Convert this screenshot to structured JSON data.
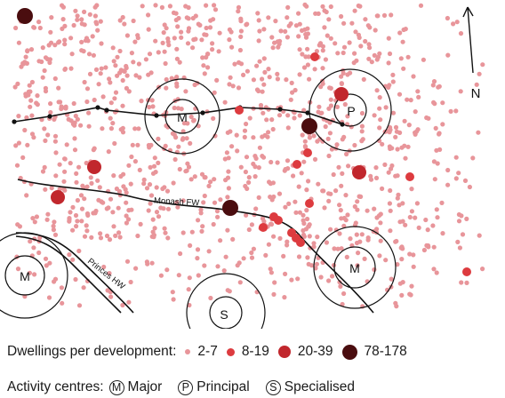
{
  "map": {
    "north_label": "N",
    "road_labels": {
      "monash": "Monash FW",
      "princes": "Princes HW"
    },
    "centres": [
      {
        "id": "centre-major-1",
        "letter": "M",
        "type": "Major"
      },
      {
        "id": "centre-principal",
        "letter": "P",
        "type": "Principal"
      },
      {
        "id": "centre-major-2",
        "letter": "M",
        "type": "Major"
      },
      {
        "id": "centre-major-3",
        "letter": "M",
        "type": "Major"
      },
      {
        "id": "centre-specialised",
        "letter": "S",
        "type": "Specialised"
      }
    ]
  },
  "legend": {
    "dwellings_title": "Dwellings per development:",
    "sizes": [
      {
        "label": "2-7",
        "color": "#e8959a"
      },
      {
        "label": "8-19",
        "color": "#dd3b3f"
      },
      {
        "label": "20-39",
        "color": "#c1272d"
      },
      {
        "label": "78-178",
        "color": "#4a0d0f"
      }
    ],
    "centres_title": "Activity centres:",
    "centre_types": [
      {
        "symbol": "M",
        "label": "Major"
      },
      {
        "symbol": "P",
        "label": "Principal"
      },
      {
        "symbol": "S",
        "label": "Specialised"
      }
    ]
  },
  "colors": {
    "small": "#e8959a",
    "medium": "#dd3b3f",
    "large": "#c1272d",
    "xlarge": "#4a0d0f",
    "line": "#111111"
  }
}
